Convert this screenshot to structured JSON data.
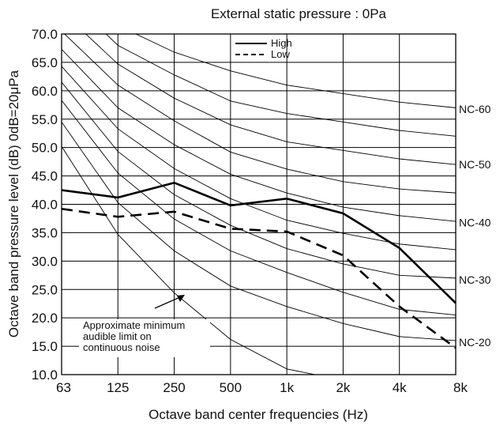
{
  "chart_data": {
    "type": "line",
    "title": "External static pressure : 0Pa",
    "xlabel": "Octave band center frequencies (Hz)",
    "ylabel": "Octave band pressure level (dB) 0dB=20μPa",
    "categories": [
      "63",
      "125",
      "250",
      "500",
      "1k",
      "2k",
      "4k",
      "8k"
    ],
    "ylim": [
      10,
      70
    ],
    "yticks": [
      "10.0",
      "15.0",
      "20.0",
      "25.0",
      "30.0",
      "35.0",
      "40.0",
      "45.0",
      "50.0",
      "55.0",
      "60.0",
      "65.0",
      "70.0"
    ],
    "grid": true,
    "legend_position": "top-center",
    "series": [
      {
        "name": "High",
        "style": "solid",
        "values": [
          42.5,
          41.2,
          43.8,
          39.8,
          41.0,
          38.4,
          32.3,
          22.6
        ]
      },
      {
        "name": "Low",
        "style": "dashed",
        "values": [
          39.2,
          37.8,
          38.7,
          35.7,
          35.2,
          31.0,
          22.0,
          14.7
        ]
      }
    ],
    "nc_curves": [
      {
        "values": [
          50.2,
          34.7,
          24.4,
          16.2,
          11.0,
          9.0,
          8.0,
          7.5
        ]
      },
      {
        "values": [
          54.5,
          40.3,
          31.8,
          25.6,
          22.0,
          19.0,
          16.7,
          16.0
        ]
      },
      {
        "values": [
          58.3,
          45.5,
          37.4,
          31.8,
          28.0,
          24.5,
          21.5,
          20.5
        ]
      },
      {
        "values": [
          61.5,
          49.3,
          41.7,
          36.3,
          32.2,
          29.5,
          27.5,
          27.0
        ]
      },
      {
        "values": [
          64.3,
          53.3,
          46.3,
          41.0,
          37.2,
          34.9,
          33.0,
          32.0
        ]
      },
      {
        "values": [
          67.3,
          57.0,
          50.5,
          45.3,
          42.0,
          39.5,
          38.0,
          37.0
        ]
      },
      {
        "values": [
          70.5,
          61.0,
          54.7,
          49.2,
          46.2,
          44.0,
          42.7,
          42.0
        ]
      },
      {
        "values": [
          74.0,
          64.7,
          58.7,
          54.0,
          51.0,
          49.5,
          48.0,
          47.0
        ]
      },
      {
        "values": [
          77.5,
          68.0,
          62.8,
          58.2,
          56.0,
          54.5,
          53.0,
          52.0
        ]
      },
      {
        "values": [
          81.0,
          71.5,
          66.8,
          63.5,
          61.0,
          59.5,
          58.0,
          57.0
        ]
      }
    ],
    "nc_labels": [
      {
        "text": "NC-60",
        "y": 56.8
      },
      {
        "text": "NC-50",
        "y": 47.0
      },
      {
        "text": "NC-40",
        "y": 36.8
      },
      {
        "text": "NC-30",
        "y": 26.7
      },
      {
        "text": "NC-20",
        "y": 15.7
      }
    ],
    "annotation": {
      "lines": [
        "Approximate minimum",
        "audible limit on",
        "continuous noise"
      ]
    }
  }
}
